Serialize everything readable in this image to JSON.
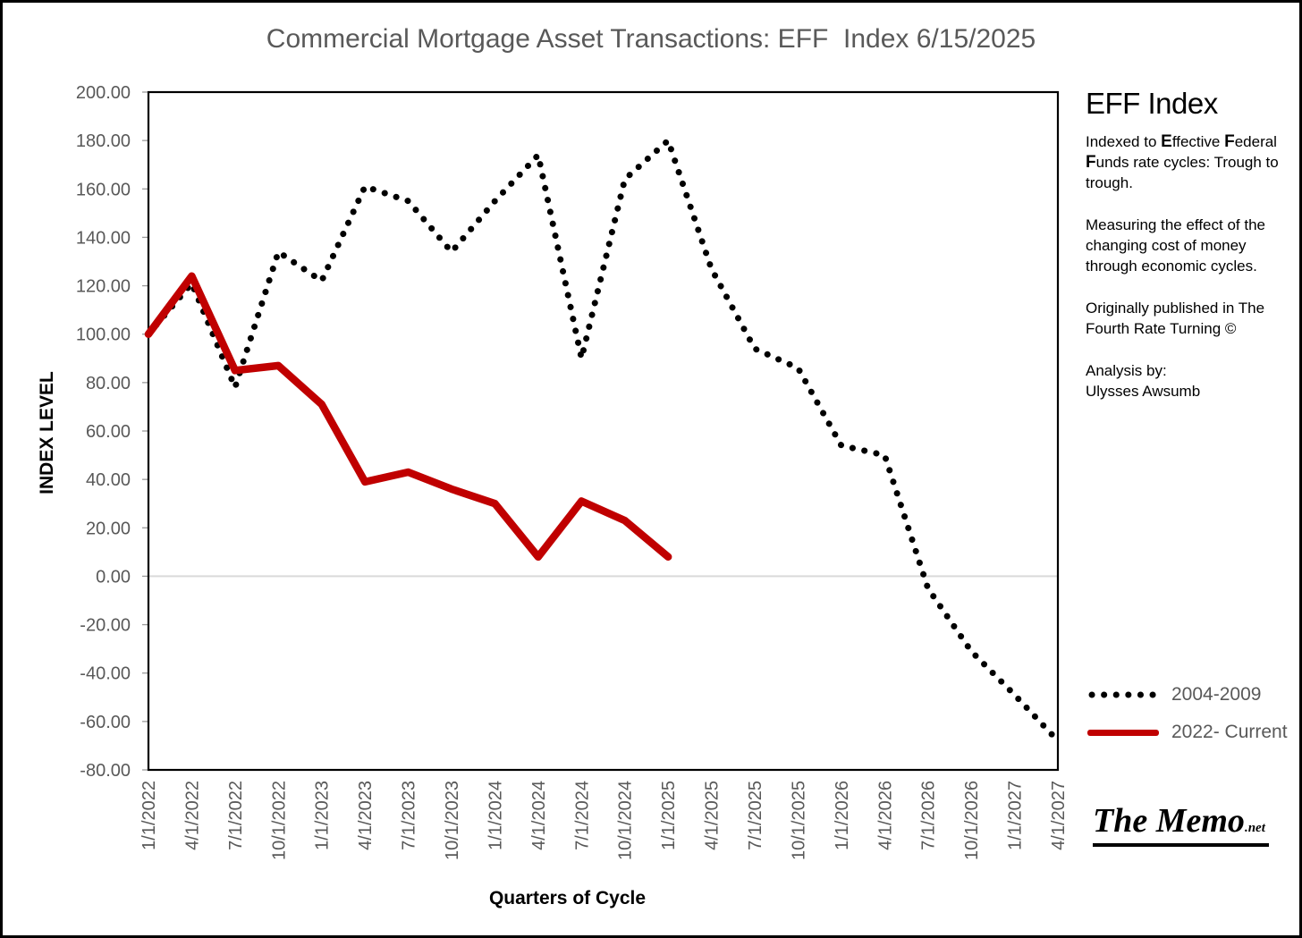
{
  "title": "Commercial Mortgage Asset Transactions: EFF  Index 6/15/2025",
  "panel": {
    "heading": "EFF Index",
    "indexed_segments": [
      {
        "text": "Indexed to ",
        "bold": false
      },
      {
        "text": "E",
        "bold": true
      },
      {
        "text": "ffective ",
        "bold": false
      },
      {
        "text": "F",
        "bold": true
      },
      {
        "text": "ederal ",
        "bold": false
      },
      {
        "text": "F",
        "bold": true
      },
      {
        "text": "unds rate cycles: Trough to trough.",
        "bold": false
      }
    ],
    "measuring": "Measuring the effect of the changing cost of money through economic cycles.",
    "published": "Originally published in The Fourth Rate Turning ©",
    "analysis_lines": [
      "Analysis by:",
      " Ulysses Awsumb"
    ]
  },
  "legend": [
    {
      "label": "2004-2009",
      "style": "dotted",
      "color": "#000000"
    },
    {
      "label": "2022- Current",
      "style": "solid",
      "color": "#C00000"
    }
  ],
  "footer": {
    "brand": "The Memo",
    "suffix": ".net"
  },
  "chart_data": {
    "type": "line",
    "title": "Commercial Mortgage Asset Transactions: EFF  Index 6/15/2025",
    "xlabel": "Quarters of Cycle",
    "ylabel": "INDEX LEVEL",
    "ylim": [
      -80,
      200
    ],
    "ytick_step": 20,
    "grid": "zero-line-only",
    "legend_position": "right",
    "categories": [
      "1/1/2022",
      "4/1/2022",
      "7/1/2022",
      "10/1/2022",
      "1/1/2023",
      "4/1/2023",
      "7/1/2023",
      "10/1/2023",
      "1/1/2024",
      "4/1/2024",
      "7/1/2024",
      "10/1/2024",
      "1/1/2025",
      "4/1/2025",
      "7/1/2025",
      "10/1/2025",
      "1/1/2026",
      "4/1/2026",
      "7/1/2026",
      "10/1/2026",
      "1/1/2027",
      "4/1/2027"
    ],
    "series": [
      {
        "name": "2004-2009",
        "color": "#000000",
        "style": "dotted",
        "values": [
          100,
          121,
          78,
          134,
          122,
          161,
          155,
          134,
          155,
          174,
          90,
          164,
          180,
          127,
          94,
          86,
          54,
          50,
          -5,
          -31,
          -49,
          -68
        ]
      },
      {
        "name": "2022- Current",
        "color": "#C00000",
        "style": "solid",
        "values": [
          100,
          124,
          85,
          87,
          71,
          39,
          43,
          36,
          30,
          8,
          31,
          23,
          8,
          null,
          null,
          null,
          null,
          null,
          null,
          null,
          null,
          null
        ]
      }
    ]
  }
}
